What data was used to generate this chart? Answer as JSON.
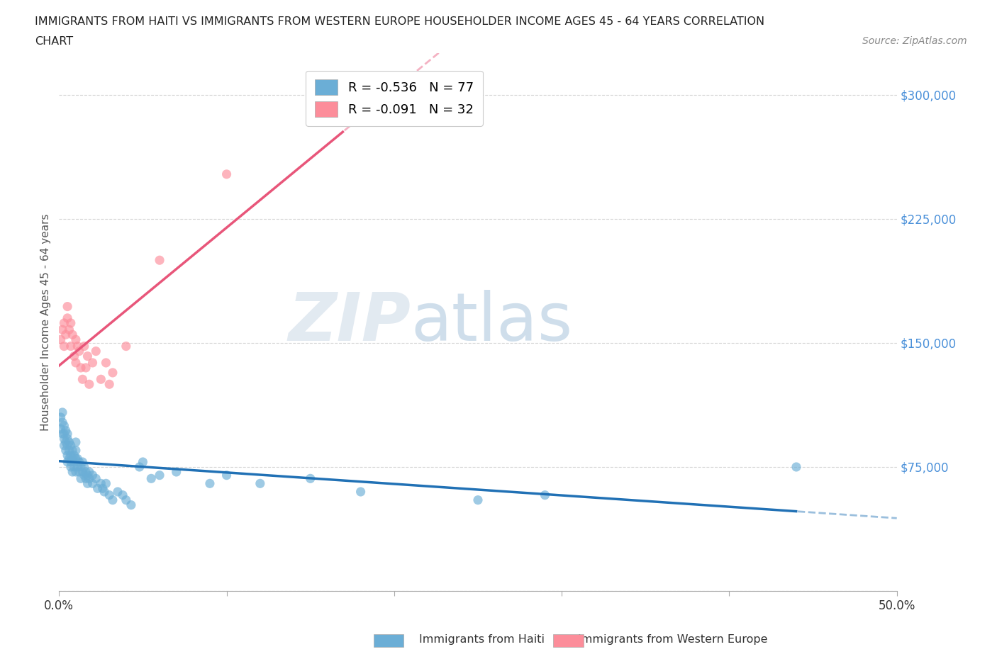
{
  "title_line1": "IMMIGRANTS FROM HAITI VS IMMIGRANTS FROM WESTERN EUROPE HOUSEHOLDER INCOME AGES 45 - 64 YEARS CORRELATION",
  "title_line2": "CHART",
  "source_text": "Source: ZipAtlas.com",
  "ylabel": "Householder Income Ages 45 - 64 years",
  "xlim": [
    0.0,
    0.5
  ],
  "ylim": [
    0,
    325000
  ],
  "yticks": [
    0,
    75000,
    150000,
    225000,
    300000
  ],
  "ytick_labels": [
    "",
    "$75,000",
    "$150,000",
    "$225,000",
    "$300,000"
  ],
  "xticks": [
    0.0,
    0.125,
    0.25,
    0.375,
    0.5
  ],
  "xtick_labels": [
    "0.0%",
    "",
    "",
    "",
    "50.0%"
  ],
  "haiti_color": "#6baed6",
  "haiti_color_line": "#2171b5",
  "western_europe_color": "#fc8d9a",
  "western_europe_color_line": "#e8567a",
  "legend_haiti_R": "-0.536",
  "legend_haiti_N": "77",
  "legend_we_R": "-0.091",
  "legend_we_N": "32",
  "legend_haiti_label": "Immigrants from Haiti",
  "legend_we_label": "Immigrants from Western Europe",
  "watermark_zip": "ZIP",
  "watermark_atlas": "atlas",
  "background_color": "#ffffff",
  "grid_color": "#cccccc",
  "haiti_x": [
    0.001,
    0.001,
    0.002,
    0.002,
    0.002,
    0.003,
    0.003,
    0.003,
    0.003,
    0.004,
    0.004,
    0.004,
    0.005,
    0.005,
    0.005,
    0.005,
    0.005,
    0.006,
    0.006,
    0.006,
    0.007,
    0.007,
    0.007,
    0.007,
    0.008,
    0.008,
    0.008,
    0.009,
    0.009,
    0.009,
    0.01,
    0.01,
    0.01,
    0.01,
    0.011,
    0.011,
    0.012,
    0.012,
    0.013,
    0.013,
    0.014,
    0.014,
    0.015,
    0.015,
    0.016,
    0.016,
    0.017,
    0.017,
    0.018,
    0.018,
    0.02,
    0.02,
    0.022,
    0.023,
    0.025,
    0.026,
    0.027,
    0.028,
    0.03,
    0.032,
    0.035,
    0.038,
    0.04,
    0.043,
    0.048,
    0.05,
    0.055,
    0.06,
    0.07,
    0.09,
    0.1,
    0.12,
    0.15,
    0.18,
    0.25,
    0.29,
    0.44
  ],
  "haiti_y": [
    105000,
    98000,
    108000,
    95000,
    102000,
    100000,
    92000,
    88000,
    95000,
    90000,
    85000,
    97000,
    88000,
    82000,
    95000,
    78000,
    92000,
    85000,
    80000,
    90000,
    82000,
    78000,
    88000,
    75000,
    80000,
    85000,
    72000,
    78000,
    82000,
    75000,
    80000,
    72000,
    85000,
    90000,
    75000,
    80000,
    72000,
    78000,
    75000,
    68000,
    72000,
    78000,
    70000,
    75000,
    68000,
    72000,
    70000,
    65000,
    68000,
    72000,
    65000,
    70000,
    68000,
    62000,
    65000,
    62000,
    60000,
    65000,
    58000,
    55000,
    60000,
    58000,
    55000,
    52000,
    75000,
    78000,
    68000,
    70000,
    72000,
    65000,
    70000,
    65000,
    68000,
    60000,
    55000,
    58000,
    75000
  ],
  "we_x": [
    0.001,
    0.002,
    0.003,
    0.003,
    0.004,
    0.005,
    0.005,
    0.006,
    0.007,
    0.007,
    0.008,
    0.009,
    0.01,
    0.01,
    0.011,
    0.012,
    0.013,
    0.014,
    0.015,
    0.016,
    0.017,
    0.018,
    0.02,
    0.022,
    0.025,
    0.028,
    0.03,
    0.032,
    0.04,
    0.06,
    0.1,
    0.17
  ],
  "we_y": [
    152000,
    158000,
    162000,
    148000,
    155000,
    165000,
    172000,
    158000,
    148000,
    162000,
    155000,
    142000,
    152000,
    138000,
    148000,
    145000,
    135000,
    128000,
    148000,
    135000,
    142000,
    125000,
    138000,
    145000,
    128000,
    138000,
    125000,
    132000,
    148000,
    200000,
    252000,
    285000
  ]
}
